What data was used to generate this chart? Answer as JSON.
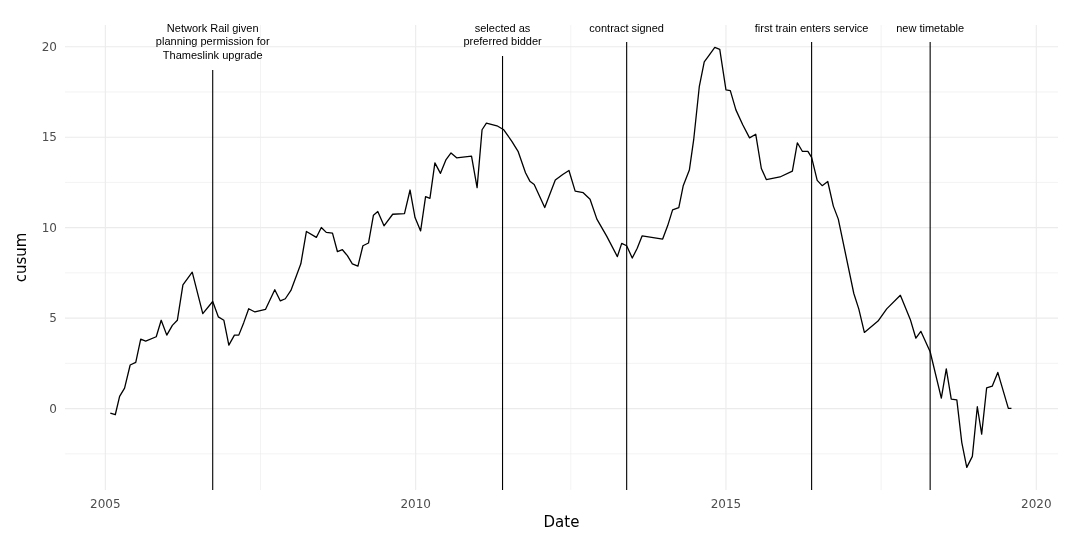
{
  "chart_data": {
    "type": "line",
    "xlabel": "Date",
    "ylabel": "cusum",
    "xlim": [
      2004.35,
      2020.35
    ],
    "ylim": [
      -4.5,
      21.2
    ],
    "xticks": [
      2005,
      {
        "value": 2007.5,
        "label": null
      },
      2010,
      {
        "value": 2012.5,
        "label": null
      },
      2015,
      {
        "value": 2017.5,
        "label": null
      },
      2020
    ],
    "yticks": [
      {
        "value": -2.5,
        "label": null
      },
      0,
      {
        "value": 2.5,
        "label": null
      },
      5,
      {
        "value": 7.5,
        "label": null
      },
      10,
      {
        "value": 12.5,
        "label": null
      },
      15,
      {
        "value": 17.5,
        "label": null
      },
      20
    ],
    "grid": true,
    "marker": "none",
    "line_style": "solid",
    "series": [
      {
        "color": "#000000",
        "x": [
          2005.08,
          2005.16,
          2005.23,
          2005.31,
          2005.4,
          2005.49,
          2005.57,
          2005.65,
          2005.82,
          2005.9,
          2005.99,
          2006.08,
          2006.16,
          2006.25,
          2006.4,
          2006.57,
          2006.73,
          2006.82,
          2006.91,
          2006.99,
          2007.08,
          2007.15,
          2007.23,
          2007.31,
          2007.41,
          2007.58,
          2007.73,
          2007.82,
          2007.9,
          2007.99,
          2008.08,
          2008.15,
          2008.24,
          2008.4,
          2008.48,
          2008.56,
          2008.66,
          2008.74,
          2008.82,
          2008.9,
          2008.98,
          2009.07,
          2009.15,
          2009.24,
          2009.32,
          2009.39,
          2009.49,
          2009.63,
          2009.82,
          2009.91,
          2009.99,
          2010.08,
          2010.16,
          2010.23,
          2010.31,
          2010.4,
          2010.49,
          2010.57,
          2010.66,
          2010.9,
          2010.99,
          2011.07,
          2011.14,
          2011.31,
          2011.42,
          2011.55,
          2011.65,
          2011.77,
          2011.84,
          2011.91,
          2012.08,
          2012.25,
          2012.37,
          2012.47,
          2012.57,
          2012.7,
          2012.81,
          2012.92,
          2013.08,
          2013.25,
          2013.32,
          2013.4,
          2013.49,
          2013.57,
          2013.65,
          2013.98,
          2014.06,
          2014.14,
          2014.24,
          2014.31,
          2014.41,
          2014.48,
          2014.57,
          2014.65,
          2014.73,
          2014.82,
          2014.9,
          2015.0,
          2015.07,
          2015.16,
          2015.27,
          2015.38,
          2015.48,
          2015.57,
          2015.65,
          2015.87,
          2016.07,
          2016.15,
          2016.23,
          2016.32,
          2016.38,
          2016.47,
          2016.55,
          2016.64,
          2016.73,
          2016.81,
          2017.06,
          2017.14,
          2017.23,
          2017.45,
          2017.59,
          2017.81,
          2017.97,
          2018.06,
          2018.14,
          2018.29,
          2018.47,
          2018.55,
          2018.63,
          2018.72,
          2018.8,
          2018.88,
          2018.97,
          2019.05,
          2019.12,
          2019.2,
          2019.29,
          2019.38,
          2019.55,
          2019.6
        ],
        "values": [
          -0.25,
          -0.34,
          0.67,
          1.13,
          2.41,
          2.55,
          3.84,
          3.73,
          3.97,
          4.88,
          4.06,
          4.6,
          4.88,
          6.84,
          7.54,
          5.25,
          5.92,
          5.07,
          4.88,
          3.51,
          4.06,
          4.06,
          4.75,
          5.52,
          5.34,
          5.48,
          6.57,
          5.95,
          6.07,
          6.53,
          7.35,
          8.0,
          9.79,
          9.46,
          10.01,
          9.74,
          9.7,
          8.67,
          8.78,
          8.45,
          8.0,
          7.87,
          9.0,
          9.15,
          10.69,
          10.89,
          10.1,
          10.74,
          10.78,
          12.08,
          10.56,
          9.82,
          11.71,
          11.62,
          13.58,
          13.0,
          13.76,
          14.13,
          13.86,
          13.95,
          12.21,
          15.41,
          15.78,
          15.63,
          15.41,
          14.77,
          14.22,
          13.03,
          12.57,
          12.39,
          11.11,
          12.63,
          12.94,
          13.16,
          12.02,
          11.93,
          11.57,
          10.47,
          9.52,
          8.4,
          9.13,
          9.0,
          8.32,
          8.86,
          9.55,
          9.37,
          10.1,
          10.98,
          11.11,
          12.3,
          13.18,
          14.86,
          17.79,
          19.16,
          19.53,
          19.96,
          19.85,
          17.61,
          17.57,
          16.51,
          15.69,
          14.96,
          15.16,
          13.27,
          12.66,
          12.8,
          13.12,
          14.69,
          14.22,
          14.22,
          13.88,
          12.61,
          12.32,
          12.55,
          11.19,
          10.47,
          6.36,
          5.51,
          4.21,
          4.84,
          5.51,
          6.26,
          4.93,
          3.89,
          4.27,
          3.14,
          0.58,
          2.19,
          0.52,
          0.48,
          -1.88,
          -3.25,
          -2.64,
          0.1,
          -1.41,
          1.14,
          1.24,
          2.0,
          0.01,
          0.01
        ]
      }
    ],
    "ref_lines": [
      {
        "axis": "x",
        "value": 2006.73,
        "label": "Network Rail given\nplanning permission for\nThameslink upgrade",
        "color": "#000000"
      },
      {
        "axis": "x",
        "value": 2011.4,
        "label": "selected as\npreferred bidder",
        "color": "#000000"
      },
      {
        "axis": "x",
        "value": 2013.4,
        "label": "contract signed",
        "color": "#000000"
      },
      {
        "axis": "x",
        "value": 2016.38,
        "label": "first train enters service",
        "color": "#000000"
      },
      {
        "axis": "x",
        "value": 2018.29,
        "label": "new timetable",
        "color": "#000000"
      }
    ]
  }
}
